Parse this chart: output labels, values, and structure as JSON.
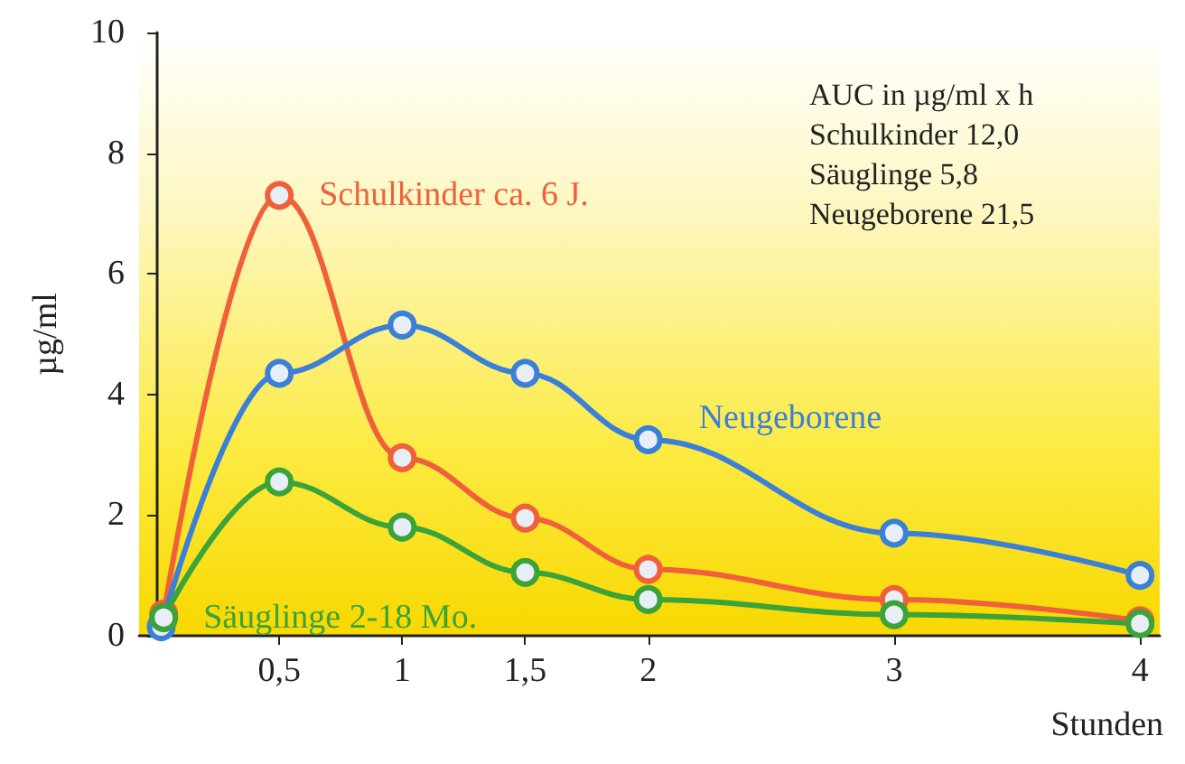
{
  "chart_data": {
    "type": "line",
    "xlabel": "Stunden",
    "ylabel": "µg/ml",
    "xlim": [
      -0.07,
      4.08
    ],
    "ylim": [
      0,
      10
    ],
    "xticks": [
      {
        "value": 0.5,
        "label": "0,5"
      },
      1,
      {
        "value": 1.5,
        "label": "1,5"
      },
      2,
      3,
      4
    ],
    "yticks": [
      0,
      2,
      4,
      6,
      8,
      10
    ],
    "grid": false,
    "legend": false,
    "marker": "circle",
    "line_style": "solid",
    "annotations": [
      "AUC in µg/ml x h",
      "Schulkinder 12,0",
      "Säuglinge 5,8",
      "Neugeborene 21,5"
    ],
    "series": [
      {
        "name": "Schulkinder ca. 6 J.",
        "color": "#f0603a",
        "x": [
          0.03,
          0.5,
          1,
          1.5,
          2,
          3,
          4
        ],
        "values": [
          0.36,
          7.3,
          2.95,
          1.95,
          1.1,
          0.6,
          0.25
        ]
      },
      {
        "name": "Neugeborene",
        "color": "#3a80d8",
        "x": [
          0.02,
          0.5,
          1,
          1.5,
          2,
          3,
          4
        ],
        "values": [
          0.15,
          4.35,
          5.15,
          4.35,
          3.25,
          1.7,
          1.0
        ]
      },
      {
        "name": "Säuglinge 2-18 Mo.",
        "color": "#3aa33a",
        "x": [
          0.03,
          0.5,
          1,
          1.5,
          2,
          3,
          4
        ],
        "values": [
          0.3,
          2.55,
          1.8,
          1.05,
          0.6,
          0.35,
          0.2
        ]
      }
    ]
  }
}
